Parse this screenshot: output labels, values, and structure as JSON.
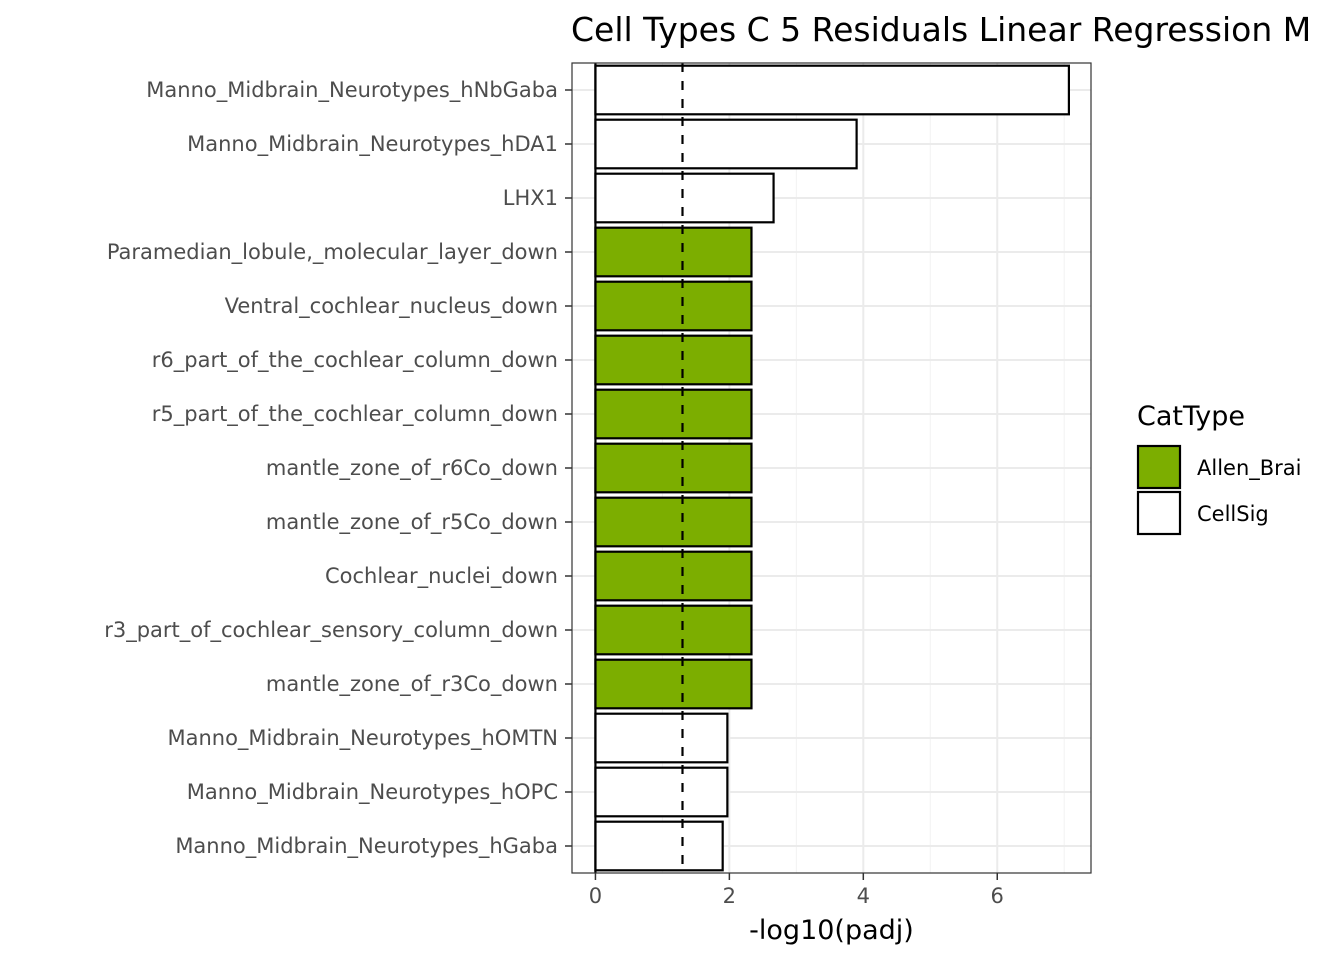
{
  "chart_data": {
    "type": "bar",
    "orientation": "horizontal",
    "title": "Cell Types C 5 Residuals Linear Regression M",
    "xlabel": "-log10(padj)",
    "ylabel": "",
    "xlim": [
      -0.35,
      7.4
    ],
    "xticks": [
      0,
      2,
      4,
      6
    ],
    "threshold_line": 1.3,
    "grid": true,
    "legend": {
      "title": "CatType",
      "placement": "right",
      "entries": [
        {
          "label": "Allen_Brai",
          "color": "#7CAE00"
        },
        {
          "label": "CellSig",
          "color": "#FFFFFF"
        }
      ]
    },
    "categories": [
      "Manno_Midbrain_Neurotypes_hNbGaba",
      "Manno_Midbrain_Neurotypes_hDA1",
      "LHX1",
      "Paramedian_lobule,_molecular_layer_down",
      "Ventral_cochlear_nucleus_down",
      "r6_part_of_the_cochlear_column_down",
      "r5_part_of_the_cochlear_column_down",
      "mantle_zone_of_r6Co_down",
      "mantle_zone_of_r5Co_down",
      "Cochlear_nuclei_down",
      "r3_part_of_cochlear_sensory_column_down",
      "mantle_zone_of_r3Co_down",
      "Manno_Midbrain_Neurotypes_hOMTN",
      "Manno_Midbrain_Neurotypes_hOPC",
      "Manno_Midbrain_Neurotypes_hGaba"
    ],
    "values": [
      7.07,
      3.9,
      2.66,
      2.33,
      2.33,
      2.33,
      2.33,
      2.33,
      2.33,
      2.33,
      2.33,
      2.33,
      1.97,
      1.97,
      1.9
    ],
    "cattype": [
      "CellSig",
      "CellSig",
      "CellSig",
      "Allen_Brai",
      "Allen_Brai",
      "Allen_Brai",
      "Allen_Brai",
      "Allen_Brai",
      "Allen_Brai",
      "Allen_Brai",
      "Allen_Brai",
      "Allen_Brai",
      "CellSig",
      "CellSig",
      "CellSig"
    ]
  }
}
